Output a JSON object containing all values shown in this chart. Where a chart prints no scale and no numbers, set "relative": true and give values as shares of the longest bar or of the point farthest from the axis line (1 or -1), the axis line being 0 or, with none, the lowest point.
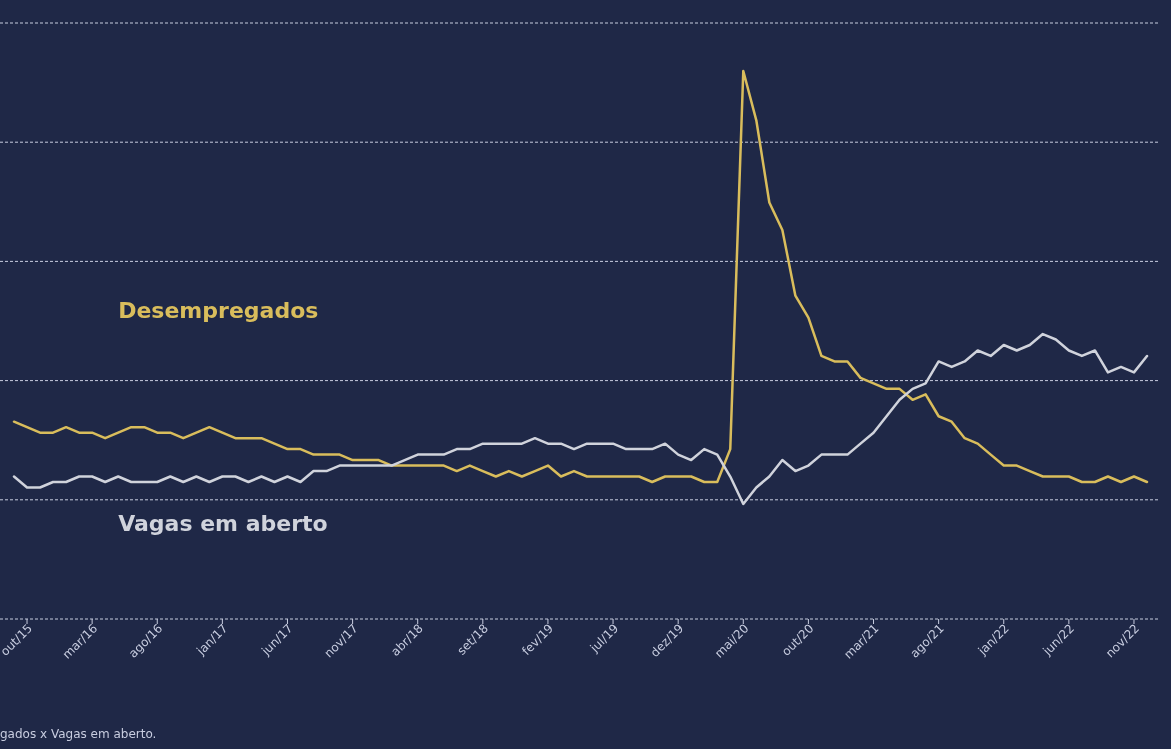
{
  "chart_data": {
    "type": "line",
    "relative": true,
    "grid": "y",
    "legend": false,
    "line_style": "solid",
    "marker": "none",
    "categories": [
      null,
      "out/15",
      null,
      null,
      null,
      null,
      "mar/16",
      null,
      null,
      null,
      null,
      "ago/16",
      null,
      null,
      null,
      null,
      "jan/17",
      null,
      null,
      null,
      null,
      "jun/17",
      null,
      null,
      null,
      null,
      "nov/17",
      null,
      null,
      null,
      null,
      "abr/18",
      null,
      null,
      null,
      null,
      "set/18",
      null,
      null,
      null,
      null,
      "fev/19",
      null,
      null,
      null,
      null,
      "jul/19",
      null,
      null,
      null,
      null,
      "dez/19",
      null,
      null,
      null,
      null,
      "mai/20",
      null,
      null,
      null,
      null,
      "out/20",
      null,
      null,
      null,
      null,
      "mar/21",
      null,
      null,
      null,
      null,
      "ago/21",
      null,
      null,
      null,
      null,
      "jan/22",
      null,
      null,
      null,
      null,
      "jun/22",
      null,
      null,
      null,
      null,
      "nov/22",
      null
    ],
    "series": [
      {
        "name": "Desempregados",
        "color": "#d9bd5c",
        "values": [
          0.36,
          0.35,
          0.34,
          0.34,
          0.35,
          0.34,
          0.34,
          0.33,
          0.34,
          0.35,
          0.35,
          0.34,
          0.34,
          0.33,
          0.34,
          0.35,
          0.34,
          0.33,
          0.33,
          0.33,
          0.32,
          0.31,
          0.31,
          0.3,
          0.3,
          0.3,
          0.29,
          0.29,
          0.29,
          0.28,
          0.28,
          0.28,
          0.28,
          0.28,
          0.27,
          0.28,
          0.27,
          0.26,
          0.27,
          0.26,
          0.27,
          0.28,
          0.26,
          0.27,
          0.26,
          0.26,
          0.26,
          0.26,
          0.26,
          0.25,
          0.26,
          0.26,
          0.26,
          0.25,
          0.25,
          0.31,
          1.0,
          0.91,
          0.76,
          0.71,
          0.59,
          0.55,
          0.48,
          0.47,
          0.47,
          0.44,
          0.43,
          0.42,
          0.42,
          0.4,
          0.41,
          0.37,
          0.36,
          0.33,
          0.32,
          0.3,
          0.28,
          0.28,
          0.27,
          0.26,
          0.26,
          0.26,
          0.25,
          0.25,
          0.26,
          0.25,
          0.26,
          0.25
        ]
      },
      {
        "name": "Vagas em aberto",
        "color": "#d0d3dc",
        "values": [
          0.26,
          0.24,
          0.24,
          0.25,
          0.25,
          0.26,
          0.26,
          0.25,
          0.26,
          0.25,
          0.25,
          0.25,
          0.26,
          0.25,
          0.26,
          0.25,
          0.26,
          0.26,
          0.25,
          0.26,
          0.25,
          0.26,
          0.25,
          0.27,
          0.27,
          0.28,
          0.28,
          0.28,
          0.28,
          0.28,
          0.29,
          0.3,
          0.3,
          0.3,
          0.31,
          0.31,
          0.32,
          0.32,
          0.32,
          0.32,
          0.33,
          0.32,
          0.32,
          0.31,
          0.32,
          0.32,
          0.32,
          0.31,
          0.31,
          0.31,
          0.32,
          0.3,
          0.29,
          0.31,
          0.3,
          0.26,
          0.21,
          0.24,
          0.26,
          0.29,
          0.27,
          0.28,
          0.3,
          0.3,
          0.3,
          0.32,
          0.34,
          0.37,
          0.4,
          0.42,
          0.43,
          0.47,
          0.46,
          0.47,
          0.49,
          0.48,
          0.5,
          0.49,
          0.5,
          0.52,
          0.51,
          0.49,
          0.48,
          0.49,
          0.45,
          0.46,
          0.45,
          0.48
        ]
      }
    ],
    "annotations": [
      "gados x Vagas em aberto."
    ]
  }
}
